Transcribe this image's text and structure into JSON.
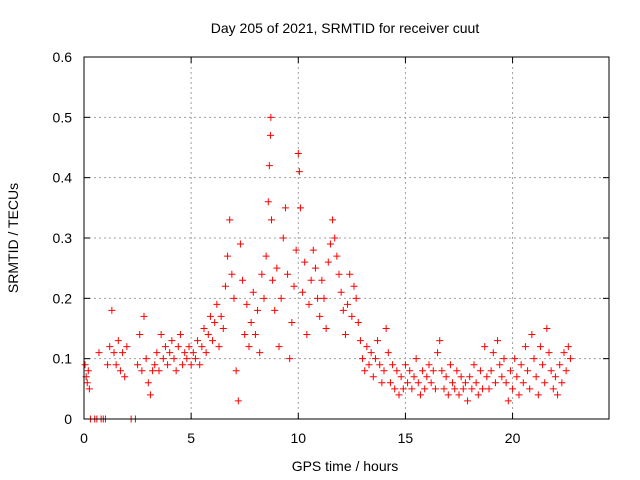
{
  "chart_data": {
    "type": "scatter",
    "title": "Day 205 of 2021, SRMTID for receiver cuut",
    "xlabel": "GPS time / hours",
    "ylabel": "SRMTID / TECUs",
    "xlim": [
      0,
      24.5
    ],
    "ylim": [
      0,
      0.6
    ],
    "xticks": [
      0,
      5,
      10,
      15,
      20
    ],
    "xtick_labels": [
      "0",
      "5",
      "10",
      "15",
      "20"
    ],
    "yticks": [
      0,
      0.1,
      0.2,
      0.3,
      0.4,
      0.5,
      0.6
    ],
    "ytick_labels": [
      "0",
      "0.1",
      "0.2",
      "0.3",
      "0.4",
      "0.5",
      "0.6"
    ],
    "grid": true,
    "marker": "plus",
    "series": [
      {
        "name": "SRMTID",
        "color": "#ff0000",
        "points": [
          [
            0.05,
            0.09
          ],
          [
            0.1,
            0.07
          ],
          [
            0.15,
            0.06
          ],
          [
            0.2,
            0.08
          ],
          [
            0.25,
            0.05
          ],
          [
            0.3,
            0.0
          ],
          [
            0.5,
            0.0
          ],
          [
            0.6,
            0.0
          ],
          [
            0.7,
            0.11
          ],
          [
            0.8,
            0.0
          ],
          [
            0.9,
            0.0
          ],
          [
            1.0,
            0.0
          ],
          [
            1.1,
            0.09
          ],
          [
            1.2,
            0.12
          ],
          [
            1.3,
            0.18
          ],
          [
            1.4,
            0.11
          ],
          [
            1.5,
            0.09
          ],
          [
            1.6,
            0.13
          ],
          [
            1.7,
            0.08
          ],
          [
            1.8,
            0.11
          ],
          [
            1.9,
            0.07
          ],
          [
            2.0,
            0.12
          ],
          [
            2.2,
            0.0
          ],
          [
            2.4,
            0.0
          ],
          [
            2.5,
            0.09
          ],
          [
            2.6,
            0.14
          ],
          [
            2.7,
            0.08
          ],
          [
            2.8,
            0.17
          ],
          [
            2.9,
            0.1
          ],
          [
            3.0,
            0.06
          ],
          [
            3.1,
            0.04
          ],
          [
            3.2,
            0.08
          ],
          [
            3.3,
            0.09
          ],
          [
            3.4,
            0.11
          ],
          [
            3.5,
            0.08
          ],
          [
            3.6,
            0.14
          ],
          [
            3.7,
            0.1
          ],
          [
            3.8,
            0.12
          ],
          [
            3.9,
            0.09
          ],
          [
            4.0,
            0.11
          ],
          [
            4.1,
            0.13
          ],
          [
            4.2,
            0.1
          ],
          [
            4.3,
            0.08
          ],
          [
            4.4,
            0.12
          ],
          [
            4.5,
            0.14
          ],
          [
            4.6,
            0.09
          ],
          [
            4.7,
            0.11
          ],
          [
            4.8,
            0.1
          ],
          [
            4.9,
            0.12
          ],
          [
            5.0,
            0.09
          ],
          [
            5.1,
            0.11
          ],
          [
            5.2,
            0.1
          ],
          [
            5.3,
            0.13
          ],
          [
            5.4,
            0.09
          ],
          [
            5.5,
            0.12
          ],
          [
            5.6,
            0.15
          ],
          [
            5.7,
            0.11
          ],
          [
            5.8,
            0.14
          ],
          [
            5.9,
            0.17
          ],
          [
            6.0,
            0.13
          ],
          [
            6.1,
            0.16
          ],
          [
            6.2,
            0.19
          ],
          [
            6.3,
            0.12
          ],
          [
            6.4,
            0.17
          ],
          [
            6.5,
            0.15
          ],
          [
            6.6,
            0.22
          ],
          [
            6.7,
            0.27
          ],
          [
            6.8,
            0.33
          ],
          [
            6.9,
            0.24
          ],
          [
            7.0,
            0.2
          ],
          [
            7.1,
            0.08
          ],
          [
            7.2,
            0.03
          ],
          [
            7.3,
            0.29
          ],
          [
            7.4,
            0.23
          ],
          [
            7.5,
            0.14
          ],
          [
            7.6,
            0.19
          ],
          [
            7.7,
            0.12
          ],
          [
            7.8,
            0.16
          ],
          [
            7.9,
            0.21
          ],
          [
            8.0,
            0.14
          ],
          [
            8.1,
            0.18
          ],
          [
            8.2,
            0.11
          ],
          [
            8.3,
            0.24
          ],
          [
            8.4,
            0.2
          ],
          [
            8.5,
            0.27
          ],
          [
            8.6,
            0.36
          ],
          [
            8.65,
            0.42
          ],
          [
            8.7,
            0.47
          ],
          [
            8.72,
            0.5
          ],
          [
            8.75,
            0.33
          ],
          [
            8.8,
            0.23
          ],
          [
            8.9,
            0.18
          ],
          [
            9.0,
            0.25
          ],
          [
            9.1,
            0.12
          ],
          [
            9.2,
            0.2
          ],
          [
            9.3,
            0.3
          ],
          [
            9.4,
            0.35
          ],
          [
            9.5,
            0.24
          ],
          [
            9.6,
            0.1
          ],
          [
            9.7,
            0.16
          ],
          [
            9.8,
            0.22
          ],
          [
            9.9,
            0.28
          ],
          [
            10.0,
            0.44
          ],
          [
            10.05,
            0.41
          ],
          [
            10.1,
            0.35
          ],
          [
            10.2,
            0.21
          ],
          [
            10.3,
            0.26
          ],
          [
            10.4,
            0.14
          ],
          [
            10.5,
            0.19
          ],
          [
            10.6,
            0.23
          ],
          [
            10.7,
            0.28
          ],
          [
            10.8,
            0.25
          ],
          [
            10.9,
            0.2
          ],
          [
            11.0,
            0.17
          ],
          [
            11.1,
            0.23
          ],
          [
            11.2,
            0.2
          ],
          [
            11.3,
            0.15
          ],
          [
            11.4,
            0.26
          ],
          [
            11.5,
            0.29
          ],
          [
            11.6,
            0.33
          ],
          [
            11.7,
            0.3
          ],
          [
            11.8,
            0.27
          ],
          [
            11.9,
            0.24
          ],
          [
            12.0,
            0.21
          ],
          [
            12.1,
            0.18
          ],
          [
            12.2,
            0.14
          ],
          [
            12.3,
            0.19
          ],
          [
            12.4,
            0.24
          ],
          [
            12.5,
            0.17
          ],
          [
            12.6,
            0.22
          ],
          [
            12.7,
            0.2
          ],
          [
            12.8,
            0.16
          ],
          [
            12.9,
            0.13
          ],
          [
            13.0,
            0.1
          ],
          [
            13.1,
            0.08
          ],
          [
            13.2,
            0.12
          ],
          [
            13.3,
            0.09
          ],
          [
            13.4,
            0.11
          ],
          [
            13.5,
            0.07
          ],
          [
            13.6,
            0.1
          ],
          [
            13.7,
            0.13
          ],
          [
            13.8,
            0.09
          ],
          [
            13.9,
            0.06
          ],
          [
            14.0,
            0.08
          ],
          [
            14.1,
            0.15
          ],
          [
            14.2,
            0.11
          ],
          [
            14.3,
            0.06
          ],
          [
            14.4,
            0.09
          ],
          [
            14.5,
            0.05
          ],
          [
            14.6,
            0.08
          ],
          [
            14.7,
            0.04
          ],
          [
            14.8,
            0.07
          ],
          [
            14.9,
            0.05
          ],
          [
            15.0,
            0.09
          ],
          [
            15.1,
            0.06
          ],
          [
            15.2,
            0.08
          ],
          [
            15.3,
            0.05
          ],
          [
            15.4,
            0.07
          ],
          [
            15.5,
            0.1
          ],
          [
            15.6,
            0.06
          ],
          [
            15.7,
            0.04
          ],
          [
            15.8,
            0.08
          ],
          [
            15.9,
            0.05
          ],
          [
            16.0,
            0.07
          ],
          [
            16.1,
            0.09
          ],
          [
            16.2,
            0.06
          ],
          [
            16.3,
            0.08
          ],
          [
            16.4,
            0.05
          ],
          [
            16.5,
            0.11
          ],
          [
            16.6,
            0.13
          ],
          [
            16.7,
            0.08
          ],
          [
            16.8,
            0.05
          ],
          [
            16.9,
            0.07
          ],
          [
            17.0,
            0.04
          ],
          [
            17.1,
            0.09
          ],
          [
            17.2,
            0.06
          ],
          [
            17.3,
            0.05
          ],
          [
            17.4,
            0.08
          ],
          [
            17.5,
            0.04
          ],
          [
            17.6,
            0.07
          ],
          [
            17.7,
            0.05
          ],
          [
            17.8,
            0.06
          ],
          [
            17.9,
            0.03
          ],
          [
            18.0,
            0.07
          ],
          [
            18.1,
            0.05
          ],
          [
            18.2,
            0.09
          ],
          [
            18.3,
            0.06
          ],
          [
            18.4,
            0.04
          ],
          [
            18.5,
            0.08
          ],
          [
            18.6,
            0.05
          ],
          [
            18.7,
            0.12
          ],
          [
            18.8,
            0.07
          ],
          [
            18.9,
            0.05
          ],
          [
            19.0,
            0.08
          ],
          [
            19.1,
            0.11
          ],
          [
            19.2,
            0.06
          ],
          [
            19.3,
            0.13
          ],
          [
            19.4,
            0.09
          ],
          [
            19.5,
            0.07
          ],
          [
            19.6,
            0.1
          ],
          [
            19.7,
            0.06
          ],
          [
            19.8,
            0.03
          ],
          [
            19.9,
            0.08
          ],
          [
            20.0,
            0.05
          ],
          [
            20.1,
            0.1
          ],
          [
            20.2,
            0.07
          ],
          [
            20.3,
            0.04
          ],
          [
            20.4,
            0.09
          ],
          [
            20.5,
            0.06
          ],
          [
            20.6,
            0.12
          ],
          [
            20.7,
            0.08
          ],
          [
            20.8,
            0.05
          ],
          [
            20.9,
            0.14
          ],
          [
            21.0,
            0.1
          ],
          [
            21.1,
            0.07
          ],
          [
            21.2,
            0.04
          ],
          [
            21.3,
            0.12
          ],
          [
            21.4,
            0.09
          ],
          [
            21.5,
            0.06
          ],
          [
            21.6,
            0.15
          ],
          [
            21.7,
            0.11
          ],
          [
            21.8,
            0.08
          ],
          [
            21.9,
            0.05
          ],
          [
            22.0,
            0.07
          ],
          [
            22.1,
            0.04
          ],
          [
            22.2,
            0.09
          ],
          [
            22.3,
            0.06
          ],
          [
            22.4,
            0.11
          ],
          [
            22.5,
            0.08
          ],
          [
            22.6,
            0.12
          ],
          [
            22.7,
            0.1
          ]
        ]
      }
    ]
  }
}
